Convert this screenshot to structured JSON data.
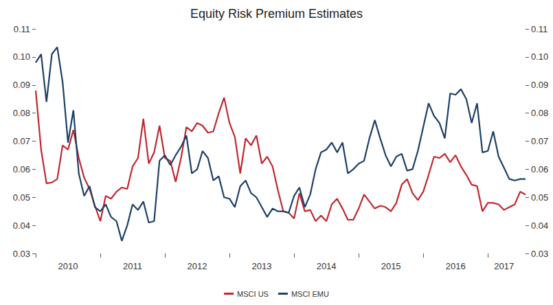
{
  "chart_data": {
    "type": "line",
    "title": "Equity Risk Premium Estimates",
    "categories": [
      null,
      null,
      null,
      null,
      null,
      null,
      "2010",
      null,
      null,
      null,
      null,
      null,
      null,
      null,
      null,
      null,
      null,
      null,
      "2011",
      null,
      null,
      null,
      null,
      null,
      null,
      null,
      null,
      null,
      null,
      null,
      "2012",
      null,
      null,
      null,
      null,
      null,
      null,
      null,
      null,
      null,
      null,
      null,
      "2013",
      null,
      null,
      null,
      null,
      null,
      null,
      null,
      null,
      null,
      null,
      null,
      "2014",
      null,
      null,
      null,
      null,
      null,
      null,
      null,
      null,
      null,
      null,
      null,
      "2015",
      null,
      null,
      null,
      null,
      null,
      null,
      null,
      null,
      null,
      null,
      null,
      "2016",
      null,
      null,
      null,
      null,
      null,
      null,
      null,
      null,
      "2017",
      null,
      null,
      null,
      null
    ],
    "series": [
      {
        "name": "MSCI US",
        "color": "#c1272d",
        "values": [
          0.088,
          0.067,
          0.055,
          0.0553,
          0.0565,
          0.0685,
          0.067,
          0.074,
          0.064,
          0.057,
          0.053,
          0.047,
          0.0415,
          0.0505,
          0.0495,
          0.052,
          0.0535,
          0.053,
          0.061,
          0.064,
          0.078,
          0.062,
          0.066,
          0.0755,
          0.064,
          0.063,
          0.0555,
          0.064,
          0.075,
          0.0735,
          0.0765,
          0.0755,
          0.073,
          0.0735,
          0.08,
          0.0855,
          0.0765,
          0.0715,
          0.0585,
          0.071,
          0.0685,
          0.072,
          0.062,
          0.0645,
          0.061,
          0.0525,
          0.045,
          0.0445,
          0.0425,
          0.0515,
          0.045,
          0.0455,
          0.0415,
          0.0435,
          0.0415,
          0.0475,
          0.0495,
          0.046,
          0.042,
          0.042,
          0.046,
          0.051,
          0.0485,
          0.046,
          0.047,
          0.0465,
          0.045,
          0.048,
          0.0545,
          0.0565,
          0.0515,
          0.049,
          0.052,
          0.058,
          0.0645,
          0.064,
          0.0655,
          0.0625,
          0.065,
          0.061,
          0.058,
          0.0545,
          0.054,
          0.045,
          0.048,
          0.048,
          0.0475,
          0.0455,
          0.0465,
          0.0475,
          0.052,
          0.051
        ]
      },
      {
        "name": "MSCI EMU",
        "color": "#1c3f66",
        "values": [
          0.098,
          0.101,
          0.084,
          0.101,
          0.1035,
          0.091,
          0.0695,
          0.081,
          0.0585,
          0.0505,
          0.054,
          0.0465,
          0.045,
          0.0475,
          0.043,
          0.0415,
          0.0345,
          0.04,
          0.0475,
          0.0455,
          0.0485,
          0.041,
          0.0415,
          0.063,
          0.065,
          0.0615,
          0.065,
          0.068,
          0.072,
          0.0585,
          0.06,
          0.0665,
          0.064,
          0.056,
          0.0575,
          0.05,
          0.0495,
          0.0465,
          0.054,
          0.056,
          0.0515,
          0.05,
          0.0465,
          0.043,
          0.046,
          0.045,
          0.045,
          0.0445,
          0.0505,
          0.0535,
          0.0465,
          0.051,
          0.06,
          0.066,
          0.067,
          0.0695,
          0.066,
          0.0695,
          0.0585,
          0.06,
          0.062,
          0.063,
          0.071,
          0.0775,
          0.071,
          0.065,
          0.061,
          0.0645,
          0.0655,
          0.0595,
          0.06,
          0.0665,
          0.075,
          0.0835,
          0.079,
          0.0765,
          0.071,
          0.087,
          0.0865,
          0.0885,
          0.085,
          0.0765,
          0.0835,
          0.066,
          0.0665,
          0.0735,
          0.0645,
          0.0605,
          0.0565,
          0.056,
          0.0565,
          0.0565
        ]
      }
    ],
    "ylim": [
      0.03,
      0.11
    ],
    "yticks": [
      0.03,
      0.04,
      0.05,
      0.06,
      0.07,
      0.08,
      0.09,
      {
        "value": 0.1,
        "label": "0.10"
      },
      0.11
    ],
    "y2lim": [
      0.03,
      0.11
    ],
    "y2ticks": [
      0.03,
      0.04,
      0.05,
      0.06,
      0.07,
      0.08,
      0.09,
      {
        "value": 0.1,
        "label": "0.10"
      },
      0.11
    ],
    "grid": false,
    "legend": "bottom"
  }
}
